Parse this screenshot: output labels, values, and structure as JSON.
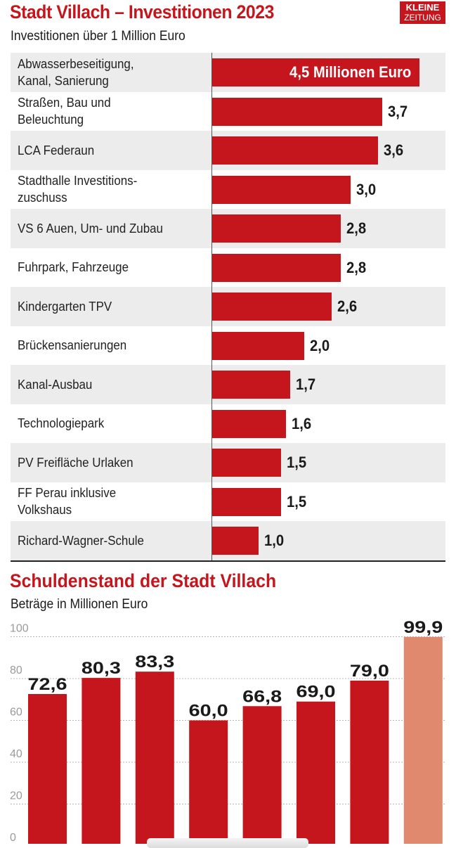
{
  "header": {
    "title": "Stadt Villach – Investitionen 2023",
    "subtitle": "Investitionen über 1 Million Euro",
    "logo_line1": "KLEINE",
    "logo_line2": "ZEITUNG"
  },
  "colors": {
    "accent": "#c4161c",
    "forecast": "#e0896e",
    "stripe": "#ececec"
  },
  "section2": {
    "title": "Schuldenstand der Stadt Villach",
    "subtitle": "Beträge in Millionen Euro"
  },
  "chart_data": [
    {
      "type": "bar",
      "orientation": "horizontal",
      "title": "Stadt Villach – Investitionen 2023",
      "subtitle": "Investitionen über 1 Million Euro",
      "unit": "Millionen Euro",
      "categories": [
        "Abwasserbeseitigung,\nKanal, Sanierung",
        "Straßen, Bau und\nBeleuchtung",
        "LCA Federaun",
        "Stadthalle Investitions-\nzuschuss",
        "VS 6 Auen, Um- und Zubau",
        "Fuhrpark, Fahrzeuge",
        "Kindergarten TPV",
        "Brückensanierungen",
        "Kanal-Ausbau",
        "Technologiepark",
        "PV Freifläche Urlaken",
        "FF Perau inklusive\nVolkshaus",
        "Richard-Wagner-Schule"
      ],
      "values": [
        4.5,
        3.7,
        3.6,
        3.0,
        2.8,
        2.8,
        2.6,
        2.0,
        1.7,
        1.6,
        1.5,
        1.5,
        1.0
      ],
      "labels": [
        "4,5 Millionen Euro",
        "3,7",
        "3,6",
        "3,0",
        "2,8",
        "2,8",
        "2,6",
        "2,0",
        "1,7",
        "1,6",
        "1,5",
        "1,5",
        "1,0"
      ],
      "xlim": [
        0,
        4.8
      ]
    },
    {
      "type": "bar",
      "orientation": "vertical",
      "title": "Schuldenstand der Stadt Villach",
      "subtitle": "Beträge in Millionen Euro",
      "values": [
        72.6,
        80.3,
        83.3,
        60.0,
        66.8,
        69.0,
        79.0,
        99.9
      ],
      "labels": [
        "72,6",
        "80,3",
        "83,3",
        "60,0",
        "66,8",
        "69,0",
        "79,0",
        "99,9"
      ],
      "highlighted_last": true,
      "yticks": [
        "0",
        "20",
        "40",
        "60",
        "80",
        "100"
      ],
      "ylim": [
        0,
        100
      ],
      "grid": true
    }
  ]
}
